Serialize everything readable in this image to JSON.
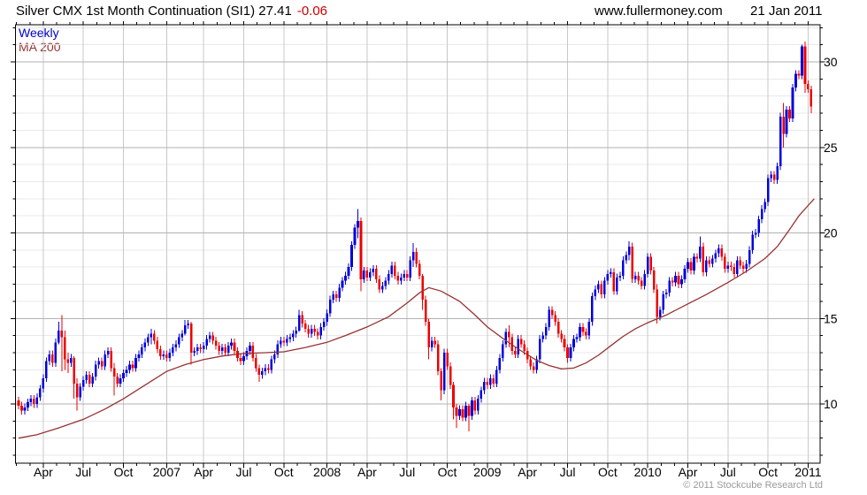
{
  "header": {
    "title": "Silver CMX 1st Month Continuation (SI1) 27.41",
    "change": "-0.06",
    "website": "www.fullermoney.com",
    "date": "21 Jan 2011"
  },
  "legend": {
    "timeframe": "Weekly",
    "ma": "MA 200"
  },
  "footer": {
    "copyright": "© 2011 Stockcube Research Ltd"
  },
  "colors": {
    "up": "#0000dd",
    "down": "#ee0000",
    "ma": "#963232",
    "change": "#cc0000",
    "legend_weekly": "#0000cc",
    "title_text": "#000000",
    "grid_minor": "#e8e8e8",
    "grid_major": "#b2b2b2",
    "grid_vertical": "#c9c9c9",
    "axis": "#000000",
    "copyright": "#9a9a9a"
  },
  "chart_data": {
    "type": "candlestick",
    "title": "Silver CMX 1st Month Continuation (SI1)",
    "timeframe": "weekly",
    "overlay": "MA 200",
    "last_price": 27.41,
    "change": -0.06,
    "ylim": [
      6.5,
      32.2
    ],
    "y_major_ticks": [
      10,
      15,
      20,
      25,
      30
    ],
    "y_minor_step": 1,
    "grid": "on",
    "x_labels": [
      {
        "label": "Apr",
        "week": 8
      },
      {
        "label": "Jul",
        "week": 21
      },
      {
        "label": "Oct",
        "week": 34
      },
      {
        "label": "2007",
        "week": 48
      },
      {
        "label": "Apr",
        "week": 60
      },
      {
        "label": "Jul",
        "week": 73
      },
      {
        "label": "Oct",
        "week": 86
      },
      {
        "label": "2008",
        "week": 100
      },
      {
        "label": "Apr",
        "week": 113
      },
      {
        "label": "Jul",
        "week": 126
      },
      {
        "label": "Oct",
        "week": 139
      },
      {
        "label": "2009",
        "week": 152
      },
      {
        "label": "Apr",
        "week": 165
      },
      {
        "label": "Jul",
        "week": 178
      },
      {
        "label": "Oct",
        "week": 191
      },
      {
        "label": "2010",
        "week": 204
      },
      {
        "label": "Apr",
        "week": 217
      },
      {
        "label": "Jul",
        "week": 230
      },
      {
        "label": "Oct",
        "week": 243
      },
      {
        "label": "2011",
        "week": 256
      }
    ],
    "candles": [
      9.9,
      9.6,
      9.8,
      10.1,
      10.3,
      10.0,
      10.4,
      10.9,
      11.5,
      12.5,
      12.9,
      12.4,
      13.6,
      [
        14.3,
        13.5,
        14.8
      ],
      [
        13.9,
        11.9,
        15.2
      ],
      [
        12.6,
        12.0,
        14.3
      ],
      [
        12.4,
        11.8,
        13.0
      ],
      12.7,
      [
        11.2,
        10.3,
        12.8
      ],
      [
        10.4,
        9.6,
        11.5
      ],
      11.0,
      11.4,
      11.7,
      11.2,
      11.6,
      12.3,
      12.5,
      12.2,
      12.9,
      13.1,
      12.1,
      [
        11.6,
        10.5,
        12.4
      ],
      11.2,
      11.5,
      11.8,
      12.0,
      12.3,
      12.1,
      12.7,
      12.9,
      13.3,
      13.6,
      13.9,
      [
        14.1,
        13.5,
        14.4
      ],
      13.7,
      13.2,
      12.8,
      12.9,
      12.7,
      13.0,
      13.3,
      13.5,
      13.9,
      14.1,
      [
        14.6,
        14.0,
        14.9
      ],
      14.7,
      [
        13.0,
        12.3,
        14.8
      ],
      13.1,
      13.3,
      13.2,
      13.4,
      13.8,
      14.0,
      13.7,
      13.4,
      13.1,
      13.3,
      13.0,
      13.4,
      13.6,
      13.1,
      12.7,
      12.5,
      12.8,
      13.1,
      13.4,
      12.7,
      12.1,
      [
        11.7,
        11.3,
        12.3
      ],
      11.9,
      12.1,
      12.0,
      12.6,
      12.9,
      13.5,
      13.7,
      13.6,
      13.8,
      13.9,
      14.1,
      14.3,
      [
        15.2,
        14.2,
        15.5
      ],
      14.7,
      14.4,
      14.1,
      14.4,
      14.2,
      14.0,
      14.5,
      14.8,
      15.3,
      16.1,
      16.4,
      16.2,
      16.8,
      17.2,
      17.5,
      18.0,
      19.3,
      20.3,
      [
        20.7,
        19.7,
        21.4
      ],
      [
        17.3,
        16.6,
        20.9
      ],
      17.8,
      17.4,
      17.7,
      17.9,
      17.3,
      16.7,
      16.9,
      17.2,
      17.6,
      18.1,
      17.5,
      17.2,
      17.4,
      17.6,
      17.4,
      18.4,
      [
        18.9,
        18.0,
        19.4
      ],
      18.2,
      17.5,
      [
        16.1,
        15.5,
        17.6
      ],
      14.8,
      [
        13.3,
        12.6,
        15.0
      ],
      13.7,
      13.5,
      11.9,
      [
        10.8,
        10.2,
        12.1
      ],
      13.0,
      12.2,
      11.1,
      [
        9.8,
        9.1,
        11.3
      ],
      [
        9.3,
        8.6,
        10.0
      ],
      9.7,
      9.2,
      9.9,
      [
        9.3,
        8.4,
        10.0
      ],
      10.2,
      9.6,
      10.3,
      10.8,
      11.3,
      11.1,
      11.5,
      11.2,
      12.0,
      12.7,
      13.5,
      14.2,
      [
        13.9,
        13.3,
        14.6
      ],
      13.1,
      12.9,
      13.8,
      13.5,
      13.1,
      12.6,
      12.2,
      12.0,
      12.6,
      13.8,
      14.0,
      14.5,
      15.5,
      15.2,
      14.8,
      14.1,
      13.8,
      13.3,
      [
        12.7,
        12.4,
        13.5
      ],
      13.3,
      13.8,
      13.9,
      14.5,
      14.2,
      14.0,
      14.8,
      16.3,
      16.7,
      17.0,
      16.4,
      17.2,
      17.6,
      17.7,
      16.6,
      17.4,
      17.5,
      18.4,
      18.7,
      [
        19.2,
        18.4,
        19.5
      ],
      17.3,
      17.5,
      17.2,
      16.9,
      17.6,
      18.6,
      17.8,
      16.7,
      [
        15.1,
        14.7,
        17.0
      ],
      15.5,
      16.4,
      16.5,
      17.2,
      17.1,
      17.5,
      17.0,
      17.3,
      17.9,
      18.3,
      17.8,
      18.6,
      18.5,
      [
        19.2,
        18.3,
        19.8
      ],
      17.7,
      18.4,
      18.2,
      18.5,
      18.8,
      19.1,
      18.6,
      17.9,
      18.1,
      18.0,
      17.6,
      18.4,
      18.1,
      17.9,
      18.2,
      19.0,
      19.9,
      20.0,
      20.8,
      21.4,
      21.8,
      23.2,
      23.4,
      23.1,
      23.9,
      26.8,
      [
        25.8,
        25.0,
        27.6
      ],
      27.2,
      26.7,
      28.5,
      29.3,
      29.2,
      [
        30.9,
        29.0,
        31.0
      ],
      [
        28.7,
        28.2,
        31.2
      ],
      28.4,
      [
        27.4,
        27.0,
        28.6
      ]
    ],
    "ma200_points": [
      [
        0,
        8.0
      ],
      [
        6,
        8.2
      ],
      [
        13,
        8.6
      ],
      [
        21,
        9.1
      ],
      [
        28,
        9.7
      ],
      [
        34,
        10.3
      ],
      [
        41,
        11.1
      ],
      [
        48,
        11.9
      ],
      [
        54,
        12.3
      ],
      [
        60,
        12.6
      ],
      [
        66,
        12.8
      ],
      [
        73,
        12.95
      ],
      [
        80,
        13.0
      ],
      [
        86,
        13.05
      ],
      [
        93,
        13.3
      ],
      [
        100,
        13.6
      ],
      [
        106,
        14.0
      ],
      [
        113,
        14.5
      ],
      [
        120,
        15.1
      ],
      [
        126,
        15.9
      ],
      [
        130,
        16.5
      ],
      [
        133,
        16.8
      ],
      [
        137,
        16.6
      ],
      [
        143,
        16.0
      ],
      [
        148,
        15.2
      ],
      [
        152,
        14.5
      ],
      [
        158,
        13.7
      ],
      [
        163,
        13.1
      ],
      [
        168,
        12.55
      ],
      [
        172,
        12.25
      ],
      [
        176,
        12.05
      ],
      [
        180,
        12.1
      ],
      [
        184,
        12.4
      ],
      [
        188,
        12.85
      ],
      [
        192,
        13.4
      ],
      [
        196,
        13.95
      ],
      [
        200,
        14.4
      ],
      [
        204,
        14.75
      ],
      [
        210,
        15.2
      ],
      [
        217,
        15.85
      ],
      [
        223,
        16.4
      ],
      [
        230,
        17.1
      ],
      [
        236,
        17.75
      ],
      [
        242,
        18.5
      ],
      [
        246,
        19.2
      ],
      [
        250,
        20.2
      ],
      [
        253,
        21.0
      ],
      [
        256,
        21.6
      ],
      [
        258,
        22.0
      ]
    ]
  }
}
